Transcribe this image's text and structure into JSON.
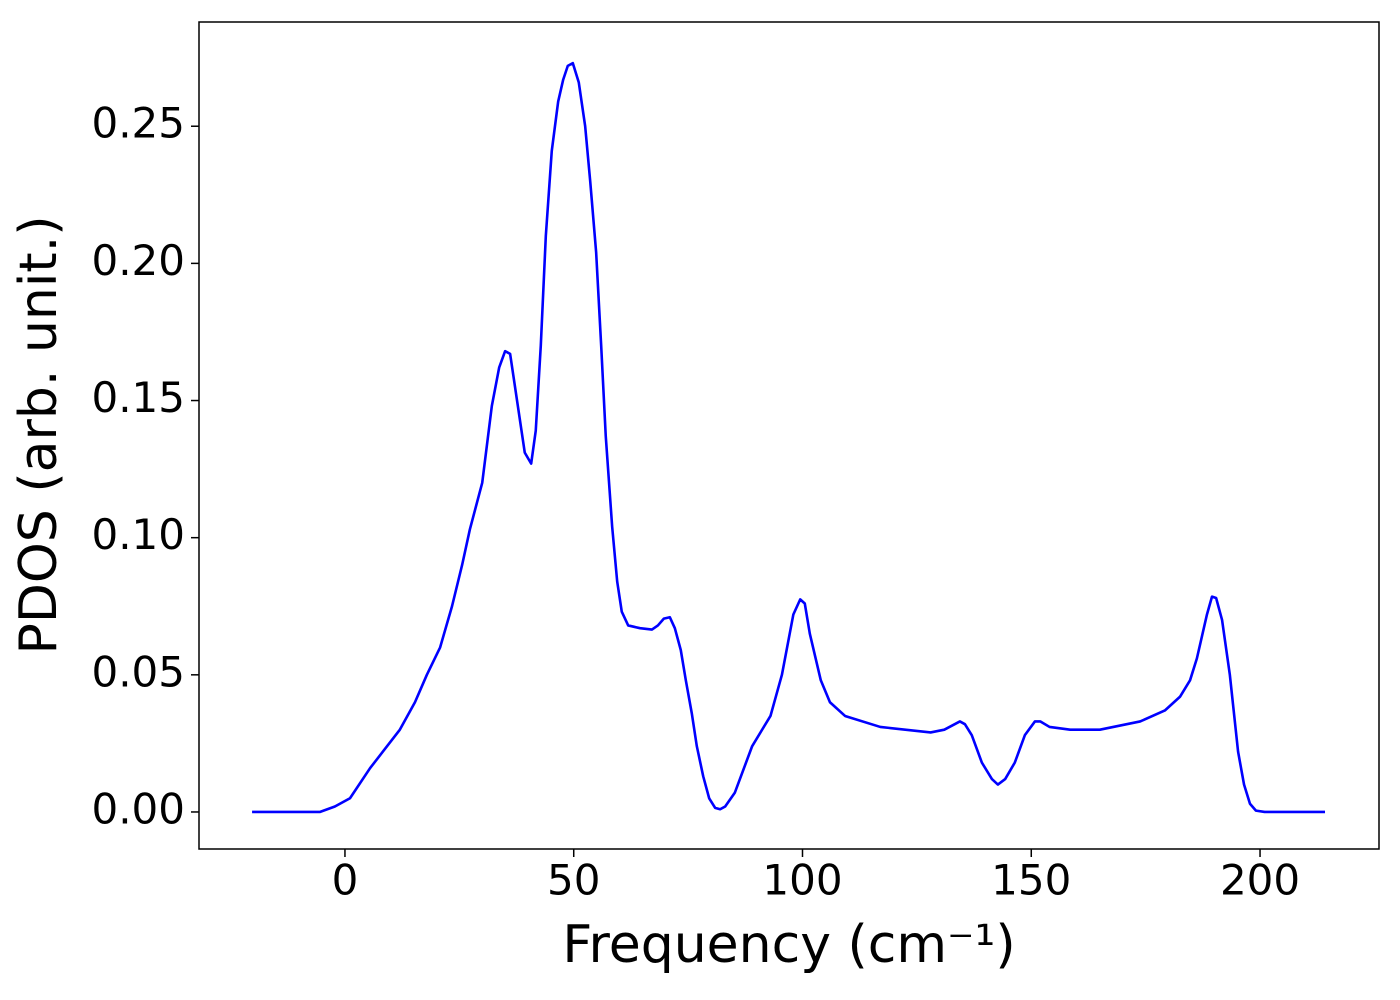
{
  "chart_data": {
    "type": "line",
    "xlabel": "Frequency (cm⁻¹)",
    "ylabel": "PDOS (arb. unit.)",
    "x": [
      -20.3,
      -5.5,
      -2.2,
      1.1,
      5.5,
      12,
      15.3,
      17.9,
      20.8,
      23.4,
      25.6,
      27.3,
      30,
      32.1,
      33.7,
      35,
      36.1,
      36.9,
      39.3,
      40.7,
      41.7,
      42.8,
      43.9,
      45.2,
      46.6,
      47.7,
      48.7,
      49.8,
      51.1,
      52.5,
      53.6,
      54.9,
      56,
      57,
      58.4,
      59.5,
      60.5,
      61.9,
      64.5,
      67.1,
      68.4,
      69.7,
      71,
      72.1,
      73.4,
      74.5,
      75.8,
      76.9,
      78.3,
      79.6,
      80.9,
      82,
      83.1,
      85.2,
      89,
      93,
      95.5,
      98,
      99.5,
      100.5,
      101.6,
      104,
      106,
      109.3,
      117,
      128,
      131,
      134.4,
      135.5,
      137,
      139.2,
      141.4,
      142.7,
      144.3,
      146.4,
      148.6,
      150.8,
      152,
      154,
      158.5,
      165,
      173.8,
      179.2,
      182.5,
      184.7,
      186.2,
      188.4,
      189.5,
      190.4,
      191.7,
      193.4,
      195.2,
      196.5,
      197.8,
      199.1,
      201,
      214.2
    ],
    "series": [
      {
        "name": "PDOS",
        "color": "#0000ff",
        "values": [
          0,
          0,
          0.002,
          0.005,
          0.016,
          0.03,
          0.04,
          0.05,
          0.06,
          0.075,
          0.09,
          0.103,
          0.12,
          0.148,
          0.162,
          0.168,
          0.167,
          0.158,
          0.131,
          0.127,
          0.139,
          0.17,
          0.21,
          0.241,
          0.259,
          0.267,
          0.272,
          0.273,
          0.266,
          0.25,
          0.23,
          0.204,
          0.17,
          0.137,
          0.104,
          0.084,
          0.073,
          0.068,
          0.067,
          0.0665,
          0.068,
          0.0705,
          0.071,
          0.067,
          0.059,
          0.048,
          0.036,
          0.024,
          0.013,
          0.005,
          0.0015,
          0.001,
          0.002,
          0.007,
          0.024,
          0.035,
          0.05,
          0.072,
          0.0775,
          0.076,
          0.065,
          0.048,
          0.04,
          0.035,
          0.031,
          0.029,
          0.03,
          0.033,
          0.032,
          0.028,
          0.018,
          0.012,
          0.01,
          0.012,
          0.018,
          0.028,
          0.033,
          0.033,
          0.031,
          0.03,
          0.03,
          0.033,
          0.037,
          0.042,
          0.048,
          0.056,
          0.072,
          0.0785,
          0.078,
          0.07,
          0.05,
          0.022,
          0.01,
          0.003,
          0.0005,
          0,
          0
        ]
      }
    ],
    "xlim": [
      -31.9,
      226
    ],
    "ylim": [
      -0.0135,
      0.288
    ],
    "xticks": [
      0,
      50,
      100,
      150,
      200
    ],
    "yticks": [
      {
        "value": 0,
        "label": "0.00"
      },
      {
        "value": 0.05,
        "label": "0.05"
      },
      {
        "value": 0.1,
        "label": "0.10"
      },
      {
        "value": 0.15,
        "label": "0.15"
      },
      {
        "value": 0.2,
        "label": "0.20"
      },
      {
        "value": 0.25,
        "label": "0.25"
      }
    ],
    "grid": false
  }
}
